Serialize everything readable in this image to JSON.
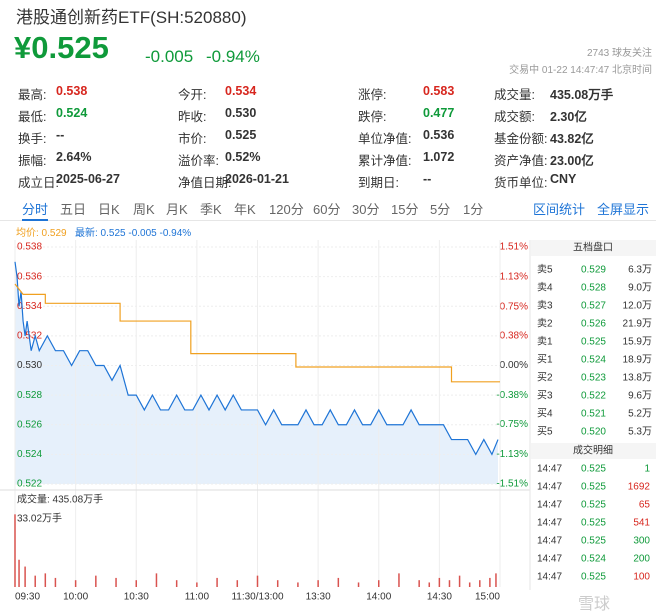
{
  "header": {
    "title": "港股通创新药ETF(SH:520880)",
    "price": "¥0.525",
    "change": "-0.005",
    "change_pct": "-0.94%",
    "followers": "2743 球友关注",
    "status": "交易中 01-22 14:47:47 北京时间"
  },
  "stats": [
    [
      [
        "最高:",
        "0.538"
      ],
      [
        "今开:",
        "0.534"
      ],
      [
        "涨停:",
        "0.583"
      ],
      [
        "成交量:",
        "435.08万手"
      ]
    ],
    [
      [
        "最低:",
        "0.524"
      ],
      [
        "昨收:",
        "0.530"
      ],
      [
        "跌停:",
        "0.477"
      ],
      [
        "成交额:",
        "2.30亿"
      ]
    ],
    [
      [
        "换手:",
        "--"
      ],
      [
        "市价:",
        "0.525"
      ],
      [
        "单位净值:",
        "0.536"
      ],
      [
        "基金份额:",
        "43.82亿"
      ]
    ],
    [
      [
        "振幅:",
        "2.64%"
      ],
      [
        "溢价率:",
        "0.52%"
      ],
      [
        "累计净值:",
        "1.072"
      ],
      [
        "资产净值:",
        "23.00亿"
      ]
    ],
    [
      [
        "成立日:",
        "2025-06-27"
      ],
      [
        "净值日期:",
        "2026-01-21"
      ],
      [
        "到期日:",
        "--"
      ],
      [
        "货币单位:",
        "CNY"
      ]
    ]
  ],
  "tabs": [
    "分时",
    "五日",
    "日K",
    "周K",
    "月K",
    "季K",
    "年K",
    "120分",
    "60分",
    "30分",
    "15分",
    "5分",
    "1分"
  ],
  "tab_actions": [
    "区间统计",
    "全屏显示"
  ],
  "legend": [
    "均价: 0.529",
    "最新: 0.525 -0.005 -0.94%"
  ],
  "chart_data": [
    {
      "type": "line",
      "xlim": [
        0,
        240
      ],
      "ylim": [
        0.522,
        0.538
      ],
      "y2lim": [
        -1.51,
        1.51
      ],
      "xticks": [
        {
          "value": 0,
          "label": "09:30"
        },
        {
          "value": 30,
          "label": "10:00"
        },
        {
          "value": 60,
          "label": "10:30"
        },
        {
          "value": 90,
          "label": "11:00"
        },
        {
          "value": 120,
          "label": "11:30/13:00"
        },
        {
          "value": 150,
          "label": "13:30"
        },
        {
          "value": 180,
          "label": "14:00"
        },
        {
          "value": 210,
          "label": "14:30"
        },
        {
          "value": 240,
          "label": "15:00"
        }
      ],
      "yticks": [
        0.538,
        0.536,
        0.534,
        0.532,
        {
          "value": 0.53,
          "label": "0.530"
        },
        0.528,
        0.526,
        0.524,
        0.522
      ],
      "y2ticks": [
        {
          "value": 1.51,
          "label": "1.51%"
        },
        {
          "value": 1.13,
          "label": "1.13%"
        },
        {
          "value": 0.75,
          "label": "0.75%"
        },
        {
          "value": 0.38,
          "label": "0.38%"
        },
        {
          "value": 0,
          "label": "0.00%"
        },
        {
          "value": -0.38,
          "label": "-0.38%"
        },
        {
          "value": -0.75,
          "label": "-0.75%"
        },
        {
          "value": -1.13,
          "label": "-1.13%"
        },
        {
          "value": -1.51,
          "label": "-1.51%"
        }
      ],
      "series": [
        {
          "color": "#1e74d6",
          "x": [
            0,
            1,
            2,
            3,
            4,
            5,
            6,
            8,
            10,
            12,
            16,
            20,
            24,
            28,
            32,
            36,
            40,
            44,
            48,
            52,
            56,
            60,
            64,
            68,
            72,
            76,
            80,
            84,
            88,
            92,
            96,
            100,
            104,
            108,
            112,
            116,
            120,
            124,
            128,
            132,
            136,
            140,
            144,
            148,
            152,
            156,
            160,
            164,
            168,
            172,
            176,
            180,
            184,
            188,
            192,
            196,
            200,
            204,
            208,
            212,
            216,
            220,
            224,
            228,
            232,
            236,
            239
          ],
          "values": [
            0.537,
            0.536,
            0.534,
            0.535,
            0.533,
            0.532,
            0.533,
            0.531,
            0.532,
            0.531,
            0.532,
            0.531,
            0.531,
            0.53,
            0.531,
            0.531,
            0.53,
            0.53,
            0.529,
            0.53,
            0.528,
            0.528,
            0.527,
            0.528,
            0.527,
            0.527,
            0.528,
            0.527,
            0.527,
            0.528,
            0.527,
            0.528,
            0.527,
            0.528,
            0.527,
            0.527,
            0.527,
            0.526,
            0.527,
            0.526,
            0.526,
            0.526,
            0.527,
            0.526,
            0.526,
            0.527,
            0.526,
            0.526,
            0.527,
            0.526,
            0.526,
            0.527,
            0.526,
            0.526,
            0.526,
            0.527,
            0.526,
            0.526,
            0.526,
            0.526,
            0.525,
            0.525,
            0.525,
            0.524,
            0.525,
            0.524,
            0.525
          ]
        },
        {
          "color": "#f0a020",
          "x": [
            0,
            4,
            15,
            15,
            52,
            52,
            87,
            87,
            139,
            139,
            216,
            216,
            240
          ],
          "values": [
            0.5355,
            0.5348,
            0.5348,
            0.5342,
            0.5342,
            0.533,
            0.533,
            0.5308,
            0.5308,
            0.5299,
            0.5299,
            0.5289,
            0.5289
          ]
        }
      ]
    },
    {
      "type": "bar",
      "title": "成交量: 435.08万手",
      "ylim": [
        0,
        33.02
      ],
      "yticks": [
        {
          "value": 33.02,
          "label": "33.02万手"
        }
      ],
      "color": "#d9534f",
      "x": [
        0,
        2,
        5,
        10,
        15,
        20,
        30,
        40,
        50,
        60,
        70,
        80,
        90,
        100,
        110,
        120,
        130,
        140,
        150,
        160,
        170,
        180,
        190,
        200,
        205,
        210,
        215,
        220,
        225,
        230,
        235,
        238
      ],
      "values": [
        32,
        12,
        9,
        5,
        6,
        4,
        3,
        5,
        4,
        3,
        6,
        3,
        2,
        4,
        3,
        5,
        3,
        2,
        3,
        4,
        2,
        3,
        6,
        3,
        2,
        4,
        3,
        5,
        2,
        3,
        4,
        6
      ]
    }
  ],
  "order_book": {
    "title": "五档盘口",
    "rows": [
      [
        "卖5",
        "0.529",
        "6.3万"
      ],
      [
        "卖4",
        "0.528",
        "9.0万"
      ],
      [
        "卖3",
        "0.527",
        "12.0万"
      ],
      [
        "卖2",
        "0.526",
        "21.9万"
      ],
      [
        "卖1",
        "0.525",
        "15.9万"
      ],
      [
        "买1",
        "0.524",
        "18.9万"
      ],
      [
        "买2",
        "0.523",
        "13.8万"
      ],
      [
        "买3",
        "0.522",
        "9.6万"
      ],
      [
        "买4",
        "0.521",
        "5.2万"
      ],
      [
        "买5",
        "0.520",
        "5.3万"
      ]
    ]
  },
  "trades": {
    "title": "成交明细",
    "rows": [
      [
        "14:47",
        "0.525",
        "1"
      ],
      [
        "14:47",
        "0.525",
        "1692"
      ],
      [
        "14:47",
        "0.525",
        "65"
      ],
      [
        "14:47",
        "0.525",
        "541"
      ],
      [
        "14:47",
        "0.525",
        "300"
      ],
      [
        "14:47",
        "0.524",
        "200"
      ],
      [
        "14:47",
        "0.525",
        "100"
      ]
    ]
  },
  "watermark": "雪球"
}
